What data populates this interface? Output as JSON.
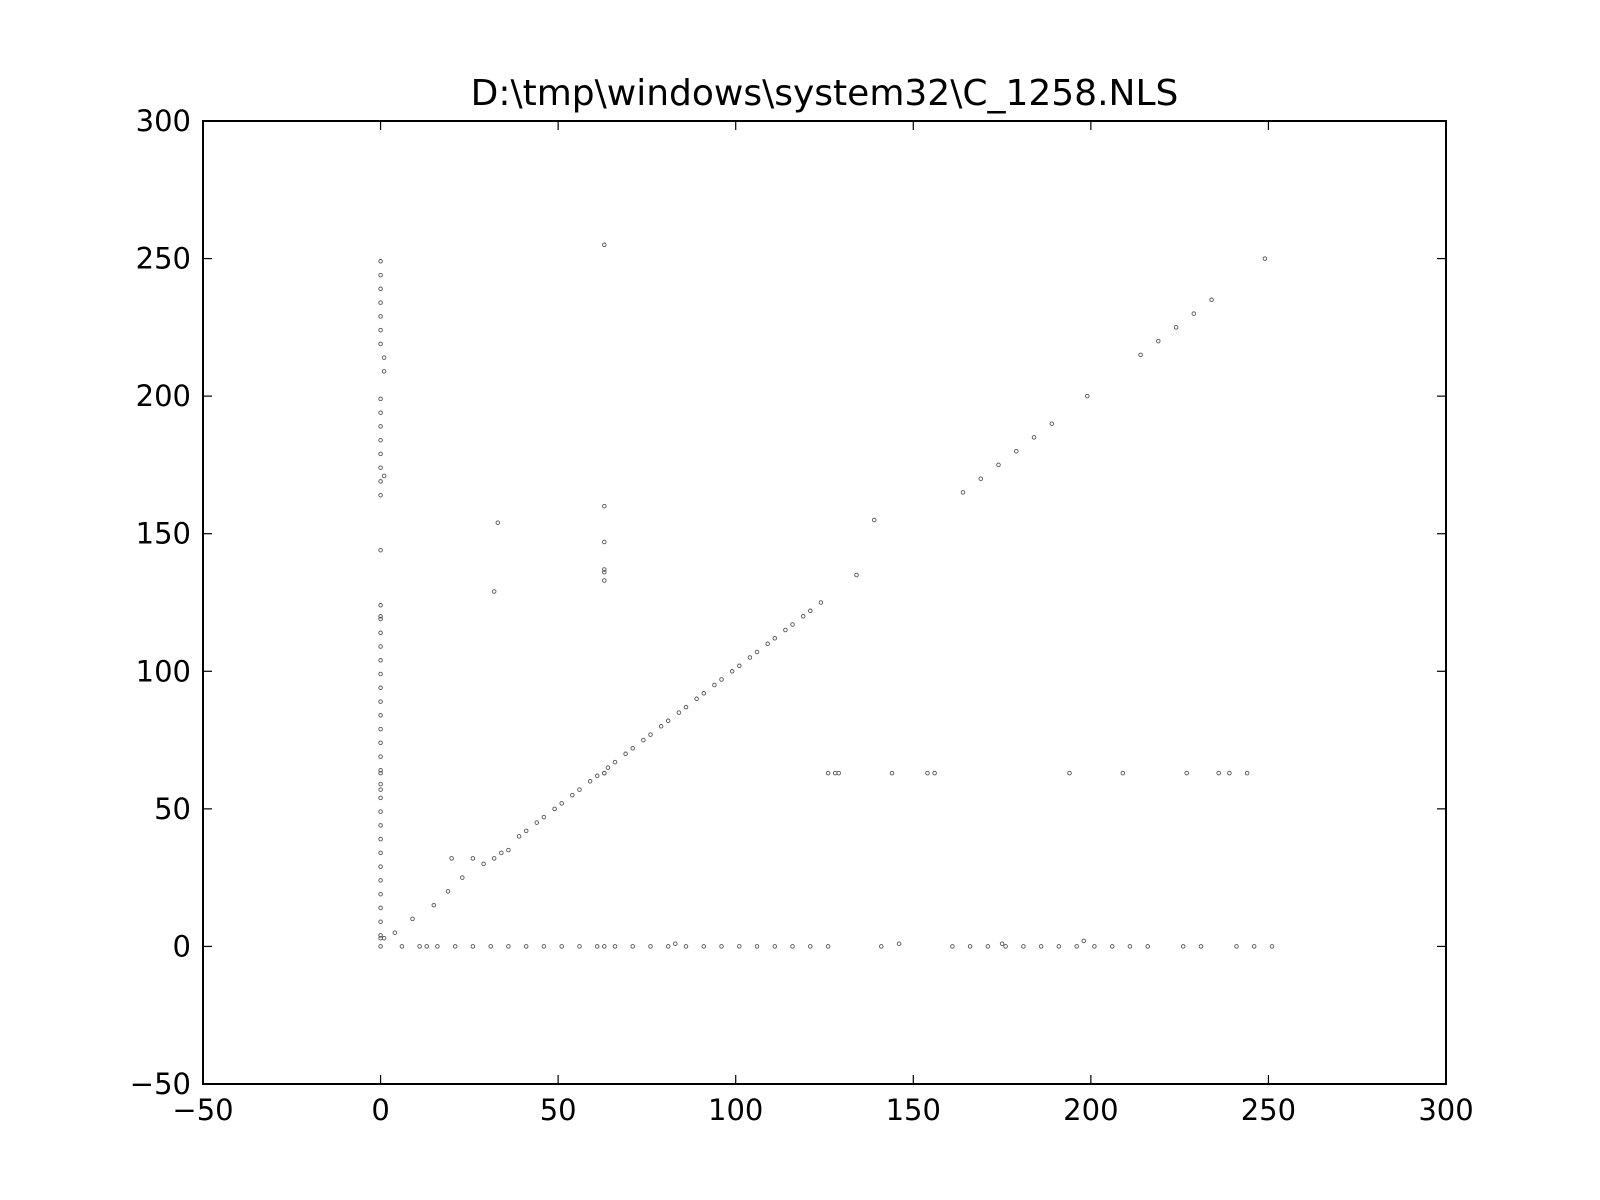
{
  "chart_data": {
    "type": "scatter",
    "title": "D:\\tmp\\windows\\system32\\C_1258.NLS",
    "xlabel": "",
    "ylabel": "",
    "xlim": [
      -50,
      300
    ],
    "ylim": [
      -50,
      300
    ],
    "xticks": [
      -50,
      0,
      50,
      100,
      150,
      200,
      250,
      300
    ],
    "yticks": [
      -50,
      0,
      50,
      100,
      150,
      200,
      250,
      300
    ],
    "xtick_labels": [
      "−50",
      "0",
      "50",
      "100",
      "150",
      "200",
      "250",
      "300"
    ],
    "ytick_labels": [
      "−50",
      "0",
      "50",
      "100",
      "150",
      "200",
      "250",
      "300"
    ],
    "grid": false,
    "marker_color": "#555555",
    "series": [
      {
        "x": [
          0,
          0,
          0,
          0,
          0,
          0,
          0,
          0,
          0,
          0,
          0,
          0,
          0,
          0,
          0,
          0,
          0,
          0,
          0,
          0,
          0,
          0,
          0,
          0,
          0,
          0,
          0,
          0,
          0,
          0,
          0,
          0,
          0,
          0,
          0,
          0,
          0,
          0,
          0,
          0,
          0,
          0,
          0,
          0,
          0,
          0,
          1,
          1,
          1,
          1,
          4,
          6,
          9,
          11,
          13,
          15,
          16,
          19,
          20,
          21,
          23,
          26,
          26,
          29,
          31,
          32,
          32,
          33,
          34,
          36,
          36,
          39,
          41,
          41,
          44,
          46,
          46,
          49,
          51,
          51,
          54,
          56,
          56,
          59,
          61,
          61,
          63,
          63,
          63,
          63,
          63,
          63,
          63,
          63,
          63,
          64,
          66,
          66,
          69,
          71,
          71,
          74,
          76,
          76,
          79,
          81,
          81,
          83,
          84,
          86,
          86,
          89,
          91,
          91,
          94,
          96,
          96,
          99,
          101,
          101,
          104,
          106,
          106,
          109,
          111,
          111,
          114,
          116,
          116,
          119,
          121,
          121,
          124,
          126,
          126,
          128,
          129,
          134,
          139,
          141,
          144,
          146,
          154,
          156,
          161,
          164,
          166,
          169,
          171,
          174,
          175,
          176,
          179,
          181,
          184,
          186,
          189,
          191,
          194,
          196,
          198,
          199,
          201,
          206,
          209,
          211,
          214,
          216,
          219,
          224,
          226,
          227,
          229,
          231,
          234,
          236,
          239,
          241,
          244,
          246,
          249,
          251
        ],
        "y": [
          0,
          4,
          9,
          14,
          19,
          24,
          29,
          34,
          39,
          44,
          49,
          54,
          57,
          59,
          63,
          64,
          69,
          74,
          79,
          84,
          89,
          94,
          99,
          104,
          109,
          114,
          119,
          120,
          124,
          144,
          164,
          169,
          174,
          179,
          184,
          189,
          194,
          199,
          219,
          224,
          229,
          234,
          239,
          244,
          249,
          3,
          171,
          209,
          214,
          3,
          5,
          0,
          10,
          0,
          0,
          15,
          0,
          20,
          32,
          0,
          25,
          0,
          32,
          30,
          0,
          32,
          129,
          154,
          34,
          35,
          0,
          40,
          0,
          42,
          45,
          0,
          47,
          50,
          0,
          52,
          55,
          0,
          57,
          60,
          0,
          62,
          0,
          63,
          63,
          133,
          136,
          137,
          147,
          160,
          255,
          65,
          0,
          67,
          70,
          0,
          72,
          75,
          0,
          77,
          80,
          0,
          82,
          1,
          85,
          0,
          87,
          90,
          0,
          92,
          95,
          0,
          97,
          100,
          0,
          102,
          105,
          0,
          107,
          110,
          0,
          112,
          115,
          0,
          117,
          120,
          0,
          122,
          125,
          0,
          63,
          63,
          63,
          135,
          155,
          0,
          63,
          1,
          63,
          63,
          0,
          165,
          0,
          170,
          0,
          175,
          1,
          0,
          180,
          0,
          185,
          0,
          190,
          0,
          63,
          0,
          2,
          200,
          0,
          0,
          63,
          0,
          215,
          0,
          220,
          225,
          0,
          63,
          230,
          0,
          235,
          63,
          63,
          0,
          63,
          0,
          250,
          0
        ]
      }
    ]
  }
}
